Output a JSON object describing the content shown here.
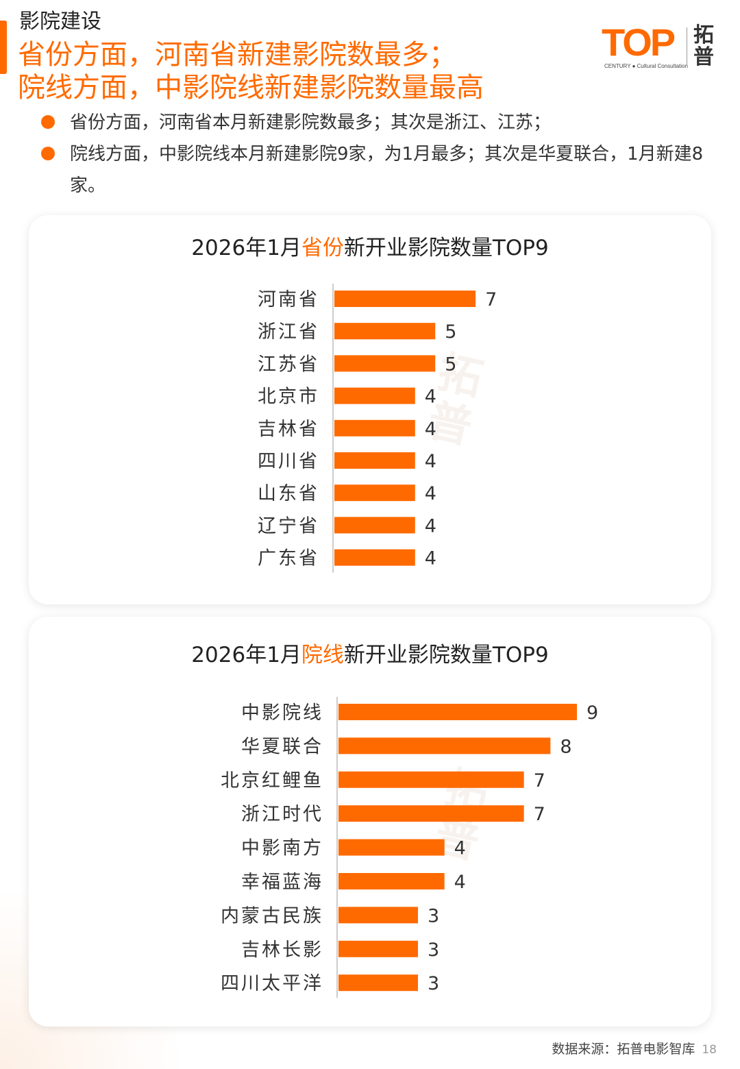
{
  "header": {
    "section_label": "影院建设",
    "headline_line1": "省份方面，河南省新建影院数最多；",
    "headline_line2": "院线方面，中影院线新建影院数量最高"
  },
  "logo": {
    "wordmark": "TOP",
    "sub": "CENTURY ● Cultural Consultation",
    "brand": "拓普"
  },
  "bullets": [
    "省份方面，河南省本月新建影院数最多；其次是浙江、江苏；",
    "院线方面，中影院线本月新建影院9家，为1月最多；其次是华夏联合，1月新建8家。"
  ],
  "colors": {
    "accent": "#ff6a00",
    "axis": "#cccccc"
  },
  "chart_data": [
    {
      "type": "bar",
      "orientation": "horizontal",
      "title": "2026年1月省份新开业影院数量TOP9",
      "title_parts": {
        "prefix": "2026年1月",
        "highlight": "省份",
        "suffix": "新开业影院数量TOP9"
      },
      "categories": [
        "河南省",
        "浙江省",
        "江苏省",
        "北京市",
        "吉林省",
        "四川省",
        "山东省",
        "辽宁省",
        "广东省"
      ],
      "values": [
        7,
        5,
        5,
        4,
        4,
        4,
        4,
        4,
        4
      ],
      "xlabel": "",
      "ylabel": "",
      "xlim": [
        0,
        9
      ],
      "data_labels": true,
      "grid": false,
      "legend": "none"
    },
    {
      "type": "bar",
      "orientation": "horizontal",
      "title": "2026年1月院线新开业影院数量TOP9",
      "title_parts": {
        "prefix": "2026年1月",
        "highlight": "院线",
        "suffix": "新开业影院数量TOP9"
      },
      "categories": [
        "中影院线",
        "华夏联合",
        "北京红鲤鱼",
        "浙江时代",
        "中影南方",
        "幸福蓝海",
        "内蒙古民族",
        "吉林长影",
        "四川太平洋"
      ],
      "values": [
        9,
        8,
        7,
        7,
        4,
        4,
        3,
        3,
        3
      ],
      "xlabel": "",
      "ylabel": "",
      "xlim": [
        0,
        9
      ],
      "data_labels": true,
      "grid": false,
      "legend": "none"
    }
  ],
  "footer": {
    "source": "数据来源：拓普电影智库",
    "page": "18"
  }
}
